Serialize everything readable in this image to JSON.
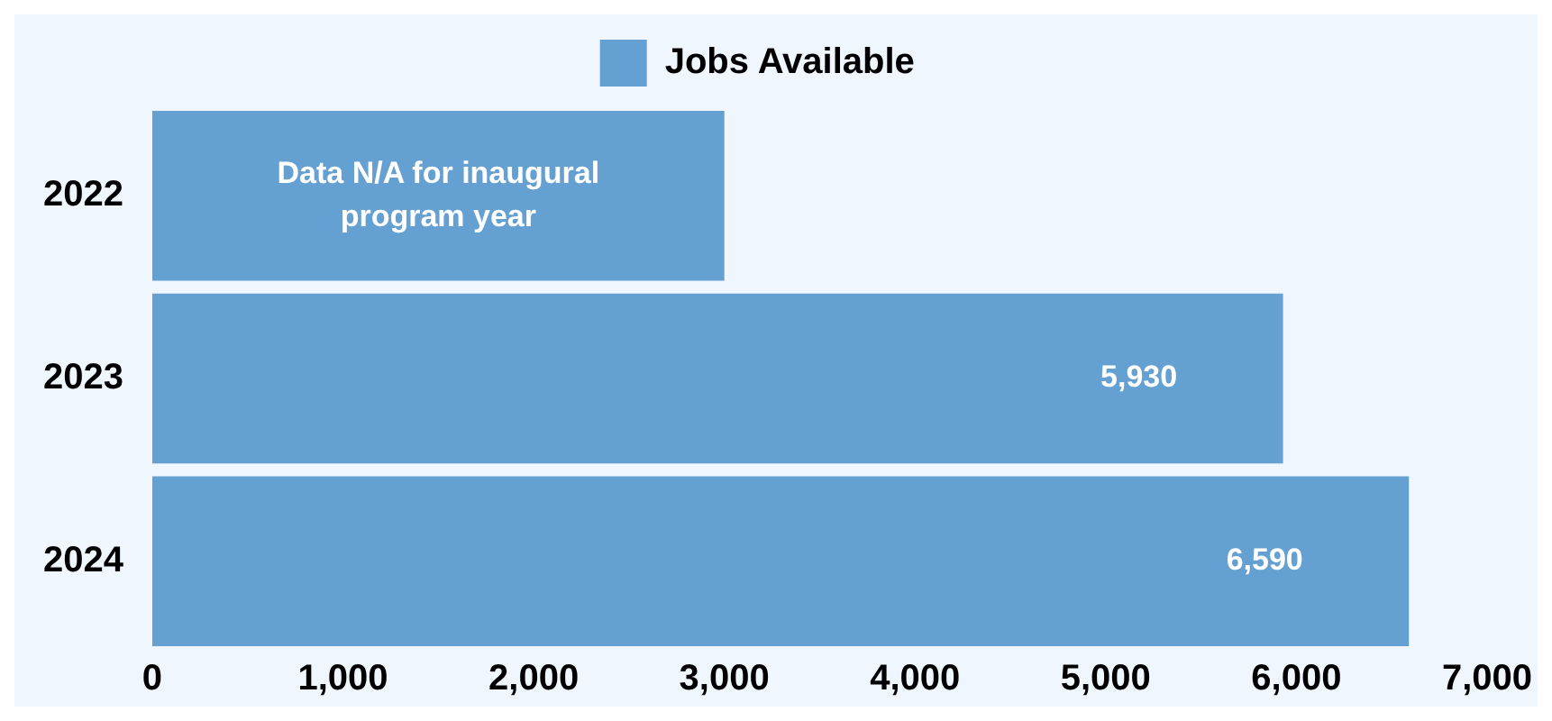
{
  "chart_data": {
    "type": "bar",
    "orientation": "horizontal",
    "categories": [
      "2022",
      "2023",
      "2024"
    ],
    "series": [
      {
        "name": "Jobs Available",
        "color": "#64a1d2",
        "values": [
          3000,
          5930,
          6590
        ],
        "value_labels": [
          "Data N/A for inaugural program year",
          "5,930",
          "6,590"
        ]
      }
    ],
    "xlim": [
      0,
      7000
    ],
    "xticks": [
      {
        "value": 0,
        "label": "0"
      },
      {
        "value": 1000,
        "label": "1,000"
      },
      {
        "value": 2000,
        "label": "2,000"
      },
      {
        "value": 3000,
        "label": "3,000"
      },
      {
        "value": 4000,
        "label": "4,000"
      },
      {
        "value": 5000,
        "label": "5,000"
      },
      {
        "value": 6000,
        "label": "6,000"
      },
      {
        "value": 7000,
        "label": "7,000"
      }
    ],
    "grid": false,
    "legend": "top"
  }
}
